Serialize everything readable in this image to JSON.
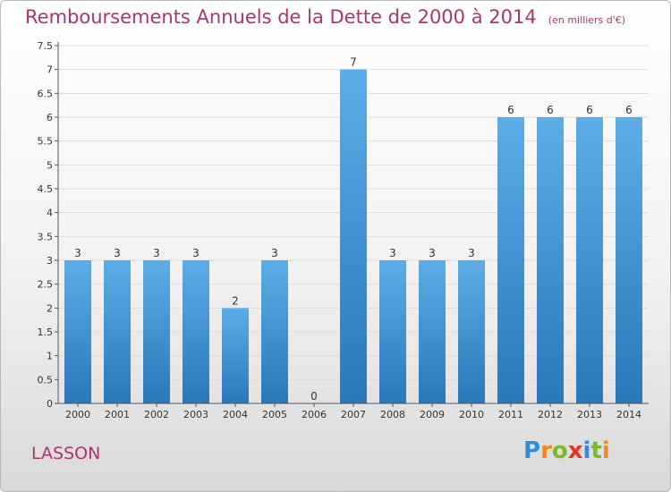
{
  "title": "Remboursements Annuels de la Dette de 2000 à 2014",
  "unit": "(en milliers d'€)",
  "city": "LASSON",
  "logo": {
    "letters": [
      "P",
      "r",
      "o",
      "x",
      "i",
      "t",
      "i"
    ],
    "colors": [
      "#2f8fd6",
      "#f08a1c",
      "#7cb928",
      "#e8321f",
      "#2f8fd6",
      "#7cb928",
      "#f08a1c"
    ]
  },
  "colors": {
    "title": "#b0336f",
    "bar_light": "#5dade8",
    "bar_dark": "#2a78b8"
  },
  "chart_data": {
    "type": "bar",
    "title": "Remboursements Annuels de la Dette de 2000 à 2014",
    "xlabel": "",
    "ylabel": "",
    "categories": [
      "2000",
      "2001",
      "2002",
      "2003",
      "2004",
      "2005",
      "2006",
      "2007",
      "2008",
      "2009",
      "2010",
      "2011",
      "2012",
      "2013",
      "2014"
    ],
    "values": [
      3,
      3,
      3,
      3,
      2,
      3,
      0,
      7,
      3,
      3,
      3,
      6,
      6,
      6,
      6
    ],
    "ylim": [
      0,
      7.5
    ],
    "yticks": [
      "0",
      "0.5",
      "1",
      "1.5",
      "2",
      "2.5",
      "3",
      "3.5",
      "4",
      "4.5",
      "5",
      "5.5",
      "6",
      "6.5",
      "7",
      "7.5"
    ],
    "grid": true
  }
}
